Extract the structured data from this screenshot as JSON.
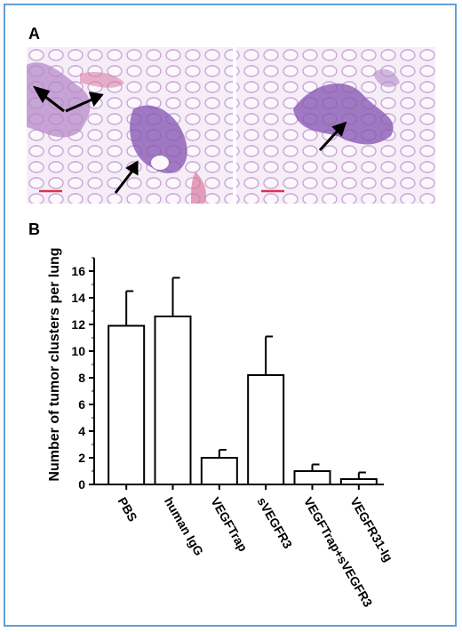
{
  "panel_a": {
    "label": "A",
    "colors": {
      "tissue_bg": "#f1dff0",
      "tissue": "#b58ac8",
      "cluster": "#7d4aa8",
      "scale_bar": "#e0304a",
      "arrow": "#000000"
    }
  },
  "panel_b": {
    "label": "B"
  },
  "chart_data": {
    "type": "bar",
    "categories": [
      "PBS",
      "human IgG",
      "VEGFTrap",
      "sVEGFR3",
      "VEGFTrap+sVEGFR3",
      "VEGFR31-Ig"
    ],
    "values": [
      11.9,
      12.6,
      2.0,
      8.2,
      1.0,
      0.4
    ],
    "errors": [
      2.6,
      2.9,
      0.6,
      2.9,
      0.5,
      0.5
    ],
    "title": "",
    "xlabel": "",
    "ylabel": "Number of tumor clusters per lung",
    "ylim": [
      0,
      17
    ],
    "yticks": [
      0,
      2,
      4,
      6,
      8,
      10,
      12,
      14,
      16
    ],
    "bar_fill": "#ffffff",
    "bar_stroke": "#000000",
    "grid": false,
    "legend": "none"
  }
}
